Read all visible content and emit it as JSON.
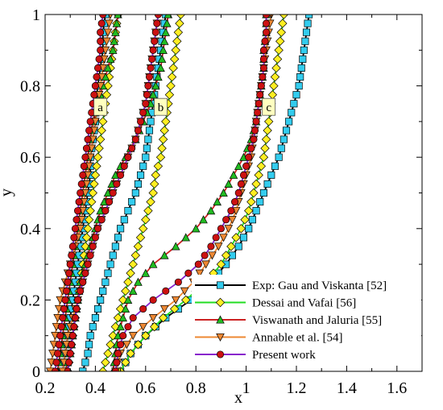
{
  "chart_data": {
    "type": "line",
    "xlabel": "x",
    "ylabel": "y",
    "xlim": [
      0.2,
      1.7
    ],
    "ylim": [
      0,
      1
    ],
    "xticks": [
      "0.2",
      "0.4",
      "0.6",
      "0.8",
      "1",
      "1.2",
      "1.4",
      "1.6"
    ],
    "yticks": [
      "0",
      "0.2",
      "0.4",
      "0.6",
      "0.8",
      "1"
    ],
    "grid": false,
    "legend_position": "bottom-right",
    "panel_labels": [
      {
        "text": "a",
        "x": 0.42,
        "y": 0.74
      },
      {
        "text": "b",
        "x": 0.66,
        "y": 0.74
      },
      {
        "text": "c",
        "x": 1.09,
        "y": 0.74
      }
    ],
    "series": [
      {
        "name": "Exp: Gau and Viskanta [52]",
        "color": "#000000",
        "marker": "square",
        "marker_color": "#33CCEE",
        "curves": [
          {
            "x": [
              0.27,
              0.28,
              0.29,
              0.3,
              0.31,
              0.32,
              0.33,
              0.34,
              0.35,
              0.36,
              0.37,
              0.38,
              0.38,
              0.39,
              0.4,
              0.4,
              0.41,
              0.42,
              0.43,
              0.43,
              0.44
            ],
            "y": [
              0.0,
              0.05,
              0.1,
              0.15,
              0.2,
              0.25,
              0.3,
              0.35,
              0.4,
              0.45,
              0.5,
              0.55,
              0.6,
              0.65,
              0.7,
              0.75,
              0.8,
              0.85,
              0.9,
              0.95,
              1.0
            ]
          },
          {
            "x": [
              0.35,
              0.37,
              0.38,
              0.4,
              0.42,
              0.44,
              0.46,
              0.48,
              0.5,
              0.53,
              0.56,
              0.58,
              0.6,
              0.61,
              0.62,
              0.63,
              0.64,
              0.65,
              0.66,
              0.67,
              0.68
            ],
            "y": [
              0.0,
              0.05,
              0.1,
              0.15,
              0.2,
              0.25,
              0.3,
              0.35,
              0.4,
              0.45,
              0.5,
              0.55,
              0.6,
              0.65,
              0.7,
              0.75,
              0.8,
              0.85,
              0.9,
              0.95,
              1.0
            ]
          },
          {
            "x": [
              0.5,
              0.54,
              0.6,
              0.68,
              0.78,
              0.86,
              0.92,
              0.97,
              1.01,
              1.04,
              1.07,
              1.1,
              1.13,
              1.15,
              1.17,
              1.19,
              1.21,
              1.22,
              1.23,
              1.24,
              1.25
            ],
            "y": [
              0.0,
              0.05,
              0.1,
              0.15,
              0.2,
              0.25,
              0.3,
              0.35,
              0.4,
              0.45,
              0.5,
              0.55,
              0.6,
              0.65,
              0.7,
              0.75,
              0.8,
              0.85,
              0.9,
              0.95,
              1.0
            ]
          }
        ]
      },
      {
        "name": "Dessai and Vafai [56]",
        "color": "#22DD22",
        "marker": "diamond",
        "marker_color": "#FFEE22",
        "curves": [
          {
            "x": [
              0.29,
              0.3,
              0.31,
              0.32,
              0.33,
              0.34,
              0.35,
              0.36,
              0.37,
              0.38,
              0.39,
              0.4,
              0.41,
              0.42,
              0.43,
              0.44,
              0.45,
              0.46,
              0.47,
              0.48,
              0.49
            ],
            "y": [
              0.0,
              0.05,
              0.1,
              0.15,
              0.2,
              0.25,
              0.3,
              0.35,
              0.4,
              0.45,
              0.5,
              0.55,
              0.6,
              0.65,
              0.7,
              0.75,
              0.8,
              0.85,
              0.9,
              0.95,
              1.0
            ]
          },
          {
            "x": [
              0.43,
              0.45,
              0.47,
              0.49,
              0.51,
              0.53,
              0.55,
              0.57,
              0.59,
              0.61,
              0.63,
              0.64,
              0.66,
              0.67,
              0.68,
              0.69,
              0.7,
              0.71,
              0.72,
              0.73,
              0.74
            ],
            "y": [
              0.0,
              0.05,
              0.1,
              0.15,
              0.2,
              0.25,
              0.3,
              0.35,
              0.4,
              0.45,
              0.5,
              0.55,
              0.6,
              0.65,
              0.7,
              0.75,
              0.8,
              0.85,
              0.9,
              0.95,
              1.0
            ]
          },
          {
            "x": [
              0.5,
              0.54,
              0.6,
              0.67,
              0.76,
              0.84,
              0.9,
              0.94,
              0.98,
              1.01,
              1.03,
              1.05,
              1.07,
              1.08,
              1.09,
              1.1,
              1.11,
              1.12,
              1.13,
              1.14,
              1.15
            ],
            "y": [
              0.0,
              0.05,
              0.1,
              0.15,
              0.2,
              0.25,
              0.3,
              0.35,
              0.4,
              0.45,
              0.5,
              0.55,
              0.6,
              0.65,
              0.7,
              0.75,
              0.8,
              0.85,
              0.9,
              0.95,
              1.0
            ]
          }
        ]
      },
      {
        "name": "Viswanath and Jaluria [55]",
        "color": "#CC2222",
        "marker": "triangle-up",
        "marker_color": "#22BB22",
        "curves": [
          {
            "x": [
              0.25,
              0.26,
              0.27,
              0.28,
              0.29,
              0.3,
              0.31,
              0.32,
              0.33,
              0.34,
              0.35,
              0.36,
              0.37,
              0.38,
              0.39,
              0.41,
              0.43,
              0.45,
              0.47,
              0.48,
              0.49
            ],
            "y": [
              0.0,
              0.05,
              0.1,
              0.15,
              0.2,
              0.25,
              0.3,
              0.35,
              0.4,
              0.45,
              0.5,
              0.55,
              0.6,
              0.65,
              0.7,
              0.75,
              0.8,
              0.85,
              0.9,
              0.95,
              1.0
            ]
          },
          {
            "x": [
              0.28,
              0.3,
              0.31,
              0.32,
              0.33,
              0.34,
              0.36,
              0.38,
              0.4,
              0.42,
              0.45,
              0.48,
              0.52,
              0.56,
              0.59,
              0.62,
              0.64,
              0.66,
              0.67,
              0.68,
              0.69
            ],
            "y": [
              0.0,
              0.05,
              0.1,
              0.15,
              0.2,
              0.25,
              0.3,
              0.35,
              0.4,
              0.45,
              0.5,
              0.55,
              0.6,
              0.65,
              0.7,
              0.75,
              0.8,
              0.85,
              0.9,
              0.95,
              1.0
            ]
          },
          {
            "x": [
              0.47,
              0.48,
              0.49,
              0.51,
              0.53,
              0.57,
              0.63,
              0.72,
              0.8,
              0.86,
              0.91,
              0.95,
              0.99,
              1.02,
              1.04,
              1.05,
              1.06,
              1.07,
              1.07,
              1.08,
              1.08
            ],
            "y": [
              0.0,
              0.05,
              0.1,
              0.15,
              0.2,
              0.25,
              0.3,
              0.35,
              0.4,
              0.45,
              0.5,
              0.55,
              0.6,
              0.65,
              0.7,
              0.75,
              0.8,
              0.85,
              0.9,
              0.95,
              1.0
            ]
          }
        ]
      },
      {
        "name": "Annable et al. [54]",
        "color": "#EE8833",
        "marker": "triangle-down",
        "marker_color": "#EE8833",
        "curves": [
          {
            "x": [
              0.22,
              0.23,
              0.24,
              0.25,
              0.26,
              0.28,
              0.3,
              0.32,
              0.34,
              0.35,
              0.36,
              0.37,
              0.38,
              0.39,
              0.4,
              0.41,
              0.42,
              0.43,
              0.44,
              0.45,
              0.46
            ],
            "y": [
              0.0,
              0.05,
              0.1,
              0.15,
              0.2,
              0.25,
              0.3,
              0.35,
              0.4,
              0.45,
              0.5,
              0.55,
              0.6,
              0.65,
              0.7,
              0.75,
              0.8,
              0.85,
              0.9,
              0.95,
              1.0
            ]
          },
          {
            "x": [
              0.27,
              0.28,
              0.29,
              0.31,
              0.33,
              0.35,
              0.37,
              0.39,
              0.41,
              0.44,
              0.47,
              0.5,
              0.53,
              0.56,
              0.58,
              0.6,
              0.61,
              0.62,
              0.63,
              0.64,
              0.65
            ],
            "y": [
              0.0,
              0.05,
              0.1,
              0.15,
              0.2,
              0.25,
              0.3,
              0.35,
              0.4,
              0.45,
              0.5,
              0.55,
              0.6,
              0.65,
              0.7,
              0.75,
              0.8,
              0.85,
              0.9,
              0.95,
              1.0
            ]
          },
          {
            "x": [
              0.48,
              0.5,
              0.55,
              0.63,
              0.72,
              0.79,
              0.84,
              0.89,
              0.93,
              0.96,
              0.98,
              1.0,
              1.02,
              1.03,
              1.04,
              1.05,
              1.06,
              1.07,
              1.08,
              1.09,
              1.1
            ],
            "y": [
              0.0,
              0.05,
              0.1,
              0.15,
              0.2,
              0.25,
              0.3,
              0.35,
              0.4,
              0.45,
              0.5,
              0.55,
              0.6,
              0.65,
              0.7,
              0.75,
              0.8,
              0.85,
              0.9,
              0.95,
              1.0
            ]
          }
        ]
      },
      {
        "name": "Present work",
        "color": "#8822CC",
        "marker": "circle",
        "marker_color": "#CC1111",
        "curves": [
          {
            "x": [
              0.24,
              0.25,
              0.26,
              0.27,
              0.28,
              0.29,
              0.3,
              0.31,
              0.32,
              0.33,
              0.34,
              0.35,
              0.36,
              0.37,
              0.38,
              0.39,
              0.4,
              0.41,
              0.42,
              0.42,
              0.43
            ],
            "y": [
              0.0,
              0.05,
              0.1,
              0.15,
              0.2,
              0.25,
              0.3,
              0.35,
              0.4,
              0.45,
              0.5,
              0.55,
              0.6,
              0.65,
              0.7,
              0.75,
              0.8,
              0.85,
              0.9,
              0.95,
              1.0
            ]
          },
          {
            "x": [
              0.29,
              0.3,
              0.31,
              0.32,
              0.33,
              0.35,
              0.37,
              0.39,
              0.41,
              0.44,
              0.47,
              0.5,
              0.53,
              0.56,
              0.58,
              0.6,
              0.61,
              0.62,
              0.63,
              0.64,
              0.65
            ],
            "y": [
              0.0,
              0.05,
              0.1,
              0.15,
              0.2,
              0.25,
              0.3,
              0.35,
              0.4,
              0.45,
              0.5,
              0.55,
              0.6,
              0.65,
              0.7,
              0.75,
              0.8,
              0.85,
              0.9,
              0.95,
              1.0
            ]
          },
          {
            "x": [
              0.48,
              0.49,
              0.51,
              0.55,
              0.63,
              0.73,
              0.81,
              0.86,
              0.9,
              0.94,
              0.97,
              0.99,
              1.01,
              1.03,
              1.04,
              1.05,
              1.06,
              1.07,
              1.07,
              1.08,
              1.08
            ],
            "y": [
              0.0,
              0.05,
              0.1,
              0.15,
              0.2,
              0.25,
              0.3,
              0.35,
              0.4,
              0.45,
              0.5,
              0.55,
              0.6,
              0.65,
              0.7,
              0.75,
              0.8,
              0.85,
              0.9,
              0.95,
              1.0
            ]
          }
        ]
      }
    ]
  }
}
